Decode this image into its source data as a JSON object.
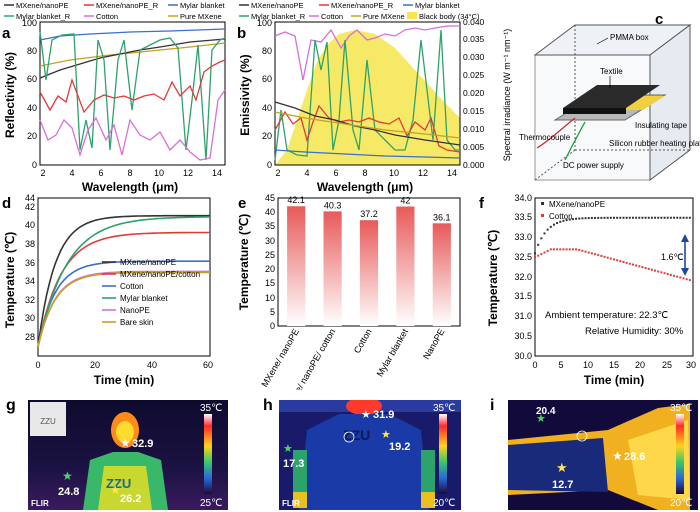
{
  "panels": {
    "a": {
      "letter": "a",
      "legend": [
        "MXene/nanoPE",
        "MXene/nanoPE_R",
        "Mylar blanket",
        "Mylar blanket_R",
        "Cotton",
        "Pure MXene"
      ],
      "xlabel": "Wavelength (μm)",
      "ylabel": "Reflectivity (%)",
      "xticks": [
        "2",
        "4",
        "6",
        "8",
        "10",
        "12",
        "14"
      ],
      "yticks": [
        "0",
        "20",
        "40",
        "60",
        "80",
        "100"
      ]
    },
    "b": {
      "letter": "b",
      "legend": [
        "MXene/nanoPE",
        "MXene/nanoPE_R",
        "Mylar blanket",
        "Mylar blanket_R",
        "Cotton",
        "Pure MXene",
        "Black body (34°C)"
      ],
      "xlabel": "Wavelength (μm)",
      "ylabel": "Emissivity (%)",
      "y2label": "Spectral irradiance (W m⁻¹ nm⁻¹)",
      "xticks": [
        "2",
        "4",
        "6",
        "8",
        "10",
        "12",
        "14"
      ],
      "yticks": [
        "0",
        "20",
        "40",
        "60",
        "80",
        "100"
      ],
      "y2ticks": [
        "0.000",
        "0.005",
        "0.010",
        "0.015",
        "0.020",
        "0.025",
        "0.030",
        "0.035",
        "0.040"
      ]
    },
    "c": {
      "letter": "c",
      "labels": [
        "PMMA box",
        "Textile",
        "Thermocouple",
        "Insulating tape",
        "Silicon rubber heating plate",
        "DC power supply"
      ]
    },
    "d": {
      "letter": "d",
      "xlabel": "Time (min)",
      "ylabel": "Temperature (℃)",
      "xticks": [
        "0",
        "20",
        "40",
        "60"
      ],
      "yticks": [
        "28",
        "30",
        "32",
        "34",
        "36",
        "38",
        "40",
        "42",
        "44"
      ],
      "legend": [
        "MXene/nanoPE",
        "MXene/nanoPE/cotton",
        "Cotton",
        "Mylar blanket",
        "NanoPE",
        "Bare skin"
      ]
    },
    "e": {
      "letter": "e",
      "ylabel": "Temperature (℃)",
      "yticks": [
        "0",
        "5",
        "10",
        "15",
        "20",
        "25",
        "30",
        "35",
        "40",
        "45"
      ]
    },
    "f": {
      "letter": "f",
      "xlabel": "Time (min)",
      "ylabel": "Temperature (℃)",
      "xticks": [
        "0",
        "5",
        "10",
        "15",
        "20",
        "25",
        "30"
      ],
      "yticks": [
        "30.0",
        "30.5",
        "31.0",
        "31.5",
        "32.0",
        "32.5",
        "33.0",
        "33.5",
        "34.0"
      ],
      "legend": [
        "MXene/nanoPE",
        "Cotton"
      ],
      "delta": "1.6℃",
      "ambient": "Ambient temperature: 22.3℃",
      "humidity": "Relative Humidity: 30%"
    },
    "g": {
      "letter": "g",
      "scale_max": "35℃",
      "scale_min": "25℃",
      "values": [
        "24.8",
        "32.9",
        "26.2"
      ],
      "brand": "FLIR",
      "shirt_text": "ZZU"
    },
    "h": {
      "letter": "h",
      "scale_max": "35℃",
      "scale_min": "20℃",
      "values": [
        "31.9",
        "17.3",
        "19.2"
      ],
      "brand": "FLIR",
      "shirt_text": "ZZU"
    },
    "i": {
      "letter": "i",
      "scale_max": "35℃",
      "scale_min": "20℃",
      "values": [
        "20.4",
        "12.7",
        "28.6"
      ]
    }
  },
  "colors": {
    "mxene": "#333333",
    "mxene_r": "#e03a3a",
    "mylar": "#3a6fd0",
    "mylar_r": "#2ca36b",
    "cotton": "#d870d8",
    "pure": "#c8a020",
    "blackbody": "#f5e54a",
    "bar": "#e85a5a"
  },
  "chart_data": [
    {
      "type": "bar",
      "title": "",
      "categories": [
        "MXene/ nanoPE",
        "MXene/ nanoPE/ cotton",
        "Cotton",
        "Mylar blanket",
        "NanoPE"
      ],
      "values": [
        42.1,
        40.3,
        37.2,
        42,
        36.1
      ],
      "labels": [
        "42.1",
        "40.3",
        "37.2",
        "42",
        "36.1"
      ],
      "ylabel": "Temperature (℃)",
      "ylim": [
        0,
        45
      ]
    },
    {
      "type": "line",
      "title": "",
      "xlabel": "Time (min)",
      "ylabel": "Temperature (℃)",
      "xlim": [
        0,
        60
      ],
      "ylim": [
        27,
        44
      ],
      "series": [
        {
          "name": "MXene/nanoPE",
          "color": "#333333",
          "final": 42.1
        },
        {
          "name": "MXene/nanoPE/cotton",
          "color": "#e03a3a",
          "final": 40.3
        },
        {
          "name": "Cotton",
          "color": "#3a6fd0",
          "final": 37.2
        },
        {
          "name": "Mylar blanket",
          "color": "#2ca36b",
          "final": 42
        },
        {
          "name": "NanoPE",
          "color": "#d870d8",
          "final": 36.1
        },
        {
          "name": "Bare skin",
          "color": "#c8a020",
          "final": 36
        }
      ]
    },
    {
      "type": "scatter",
      "title": "",
      "xlabel": "Time (min)",
      "ylabel": "Temperature (℃)",
      "xlim": [
        0,
        30
      ],
      "ylim": [
        30,
        34
      ],
      "series": [
        {
          "name": "MXene/nanoPE",
          "color": "#333333",
          "start": 32.6,
          "plateau": 33.5
        },
        {
          "name": "Cotton",
          "color": "#e03a3a",
          "start": 32.5,
          "end": 31.9
        }
      ]
    }
  ]
}
